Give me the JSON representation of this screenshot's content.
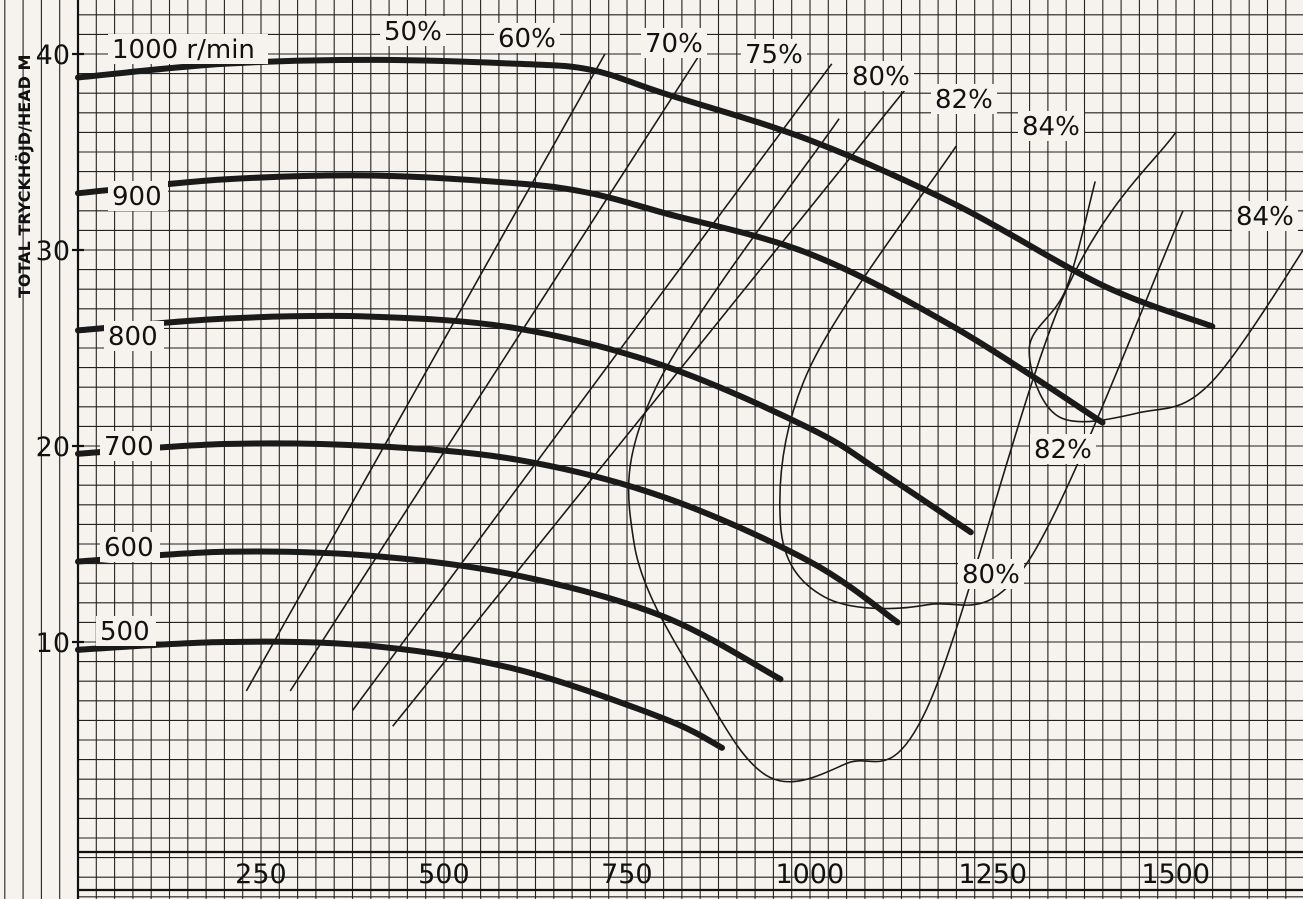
{
  "chart_data": {
    "type": "line",
    "ylabel": "TOTAL TRYCKHÖJD/HEAD M",
    "ylim": [
      0,
      43
    ],
    "xlim": [
      0,
      1650
    ],
    "yticks": [
      "10",
      "20",
      "30",
      "40"
    ],
    "xticks": [
      "250",
      "500",
      "750",
      "1000",
      "1250",
      "1500"
    ],
    "grid": true,
    "speed_unit_label": "r/min",
    "series": [
      {
        "name": "1000 r/min",
        "label": "1000 r/min",
        "x": [
          0,
          200,
          400,
          600,
          700,
          800,
          1000,
          1200,
          1400,
          1550
        ],
        "y": [
          38.8,
          39.5,
          39.7,
          39.5,
          39.2,
          38.0,
          35.6,
          32.3,
          28.2,
          26.1
        ]
      },
      {
        "name": "900",
        "label": "900",
        "x": [
          0,
          200,
          400,
          600,
          700,
          800,
          1000,
          1200,
          1400
        ],
        "y": [
          32.9,
          33.6,
          33.8,
          33.4,
          32.9,
          31.9,
          29.8,
          26.0,
          21.2
        ]
      },
      {
        "name": "800",
        "label": "800",
        "x": [
          0,
          200,
          400,
          600,
          800,
          1000,
          1100,
          1220
        ],
        "y": [
          25.9,
          26.5,
          26.6,
          26.0,
          24.1,
          20.9,
          18.6,
          15.6
        ]
      },
      {
        "name": "700",
        "label": "700",
        "x": [
          0,
          200,
          400,
          600,
          800,
          1000,
          1120
        ],
        "y": [
          19.6,
          20.1,
          20.0,
          19.3,
          17.4,
          14.1,
          11.0
        ]
      },
      {
        "name": "600",
        "label": "600",
        "x": [
          0,
          200,
          400,
          600,
          800,
          960
        ],
        "y": [
          14.1,
          14.6,
          14.4,
          13.4,
          11.3,
          8.1
        ]
      },
      {
        "name": "500",
        "label": "500",
        "x": [
          0,
          200,
          400,
          600,
          800,
          880
        ],
        "y": [
          9.6,
          10.0,
          9.8,
          8.6,
          6.1,
          4.6
        ]
      }
    ],
    "efficiency_lines": [
      {
        "label": "50%",
        "x": [
          230,
          720
        ],
        "y": [
          7.5,
          40.0
        ]
      },
      {
        "label": "60%",
        "x": [
          290,
          850
        ],
        "y": [
          7.5,
          40.0
        ]
      },
      {
        "label": "70%",
        "x": [
          375,
          1030
        ],
        "y": [
          6.5,
          39.5
        ]
      },
      {
        "label": "75%",
        "x": [
          430,
          1135
        ],
        "y": [
          5.7,
          38.4
        ]
      }
    ],
    "efficiency_contours": [
      {
        "label": "80%",
        "x": [
          1040,
          790,
          760,
          855,
          945,
          1050,
          1160,
          1345,
          1500
        ],
        "y": [
          36.7,
          23.0,
          15.0,
          7.5,
          3.1,
          3.8,
          6.6,
          27.5,
          36.0
        ]
      },
      {
        "label": "82%",
        "x": [
          1200,
          1000,
          960,
          1020,
          1160,
          1300,
          1510
        ],
        "y": [
          35.3,
          24.0,
          16.0,
          12.3,
          11.9,
          14.2,
          32.0
        ]
      },
      {
        "label": "84%",
        "x": [
          1390,
          1350,
          1300,
          1340,
          1450,
          1550,
          1700
        ],
        "y": [
          33.5,
          28.0,
          25.0,
          21.5,
          21.7,
          23.3,
          31.5
        ]
      }
    ]
  }
}
